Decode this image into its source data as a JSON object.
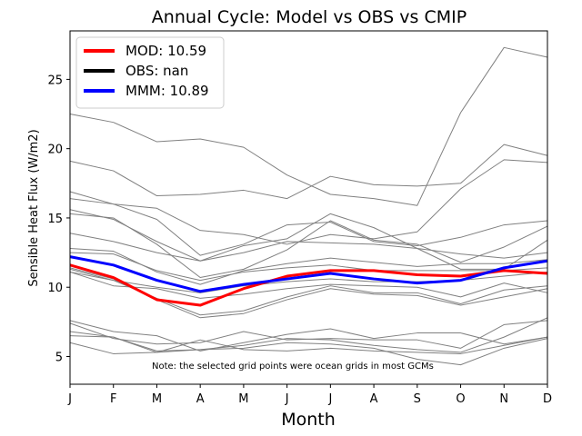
{
  "chart_data": {
    "type": "line",
    "title": "Annual Cycle: Model vs OBS vs CMIP",
    "xlabel": "Month",
    "ylabel": "Sensible Heat Flux (W/m2)",
    "categories": [
      "J",
      "F",
      "M",
      "A",
      "M",
      "J",
      "J",
      "A",
      "S",
      "O",
      "N",
      "D"
    ],
    "ylim": [
      3.0,
      28.5
    ],
    "yticks": [
      5,
      10,
      15,
      20,
      25
    ],
    "note": "Note: the selected grid points were ocean grids in most GCMs",
    "legend": {
      "position": "top-left",
      "entries": [
        {
          "label": "MOD: 10.59",
          "color": "#ff0000"
        },
        {
          "label": "OBS: nan",
          "color": "#000000"
        },
        {
          "label": "MMM: 10.89",
          "color": "#0000ff"
        }
      ]
    },
    "series": [
      {
        "name": "MOD",
        "color": "#ff0000",
        "width": 3,
        "values": [
          11.6,
          10.7,
          9.1,
          8.7,
          9.9,
          10.8,
          11.2,
          11.2,
          10.9,
          10.8,
          11.2,
          11.0
        ]
      },
      {
        "name": "MMM",
        "color": "#0000ff",
        "width": 3,
        "values": [
          12.2,
          11.6,
          10.5,
          9.7,
          10.2,
          10.6,
          11.0,
          10.6,
          10.3,
          10.5,
          11.4,
          11.9
        ]
      }
    ],
    "cmip_models": [
      {
        "color": "#808080",
        "values": [
          22.5,
          21.9,
          20.5,
          20.7,
          20.1,
          18.1,
          16.7,
          16.4,
          15.9,
          22.6,
          27.3,
          26.6
        ]
      },
      {
        "color": "#808080",
        "values": [
          19.1,
          18.4,
          16.6,
          16.7,
          17.0,
          16.4,
          18.0,
          17.4,
          17.3,
          17.5,
          20.3,
          19.5
        ]
      },
      {
        "color": "#808080",
        "values": [
          16.9,
          16.0,
          15.7,
          14.1,
          13.8,
          13.1,
          13.8,
          13.5,
          14.0,
          17.1,
          19.2,
          19.0
        ]
      },
      {
        "color": "#808080",
        "values": [
          16.4,
          16.0,
          14.9,
          12.3,
          13.1,
          14.5,
          14.7,
          13.3,
          13.0,
          13.6,
          14.5,
          14.8
        ]
      },
      {
        "color": "#808080",
        "values": [
          15.6,
          14.9,
          13.3,
          11.9,
          13.0,
          13.5,
          15.3,
          14.3,
          12.8,
          11.3,
          11.3,
          13.4
        ]
      },
      {
        "color": "#808080",
        "values": [
          15.3,
          15.0,
          13.1,
          10.7,
          11.3,
          12.7,
          14.8,
          13.4,
          13.1,
          11.8,
          12.9,
          14.4
        ]
      },
      {
        "color": "#808080",
        "values": [
          13.9,
          13.3,
          12.5,
          11.9,
          12.5,
          13.3,
          13.2,
          13.1,
          12.8,
          12.4,
          12.1,
          12.5
        ]
      },
      {
        "color": "#808080",
        "values": [
          12.8,
          12.6,
          11.1,
          10.2,
          11.2,
          11.7,
          12.1,
          11.8,
          11.5,
          11.7,
          11.7,
          12.0
        ]
      },
      {
        "color": "#808080",
        "values": [
          12.5,
          12.4,
          11.2,
          10.5,
          11.1,
          11.4,
          11.6,
          11.2,
          11.2,
          11.2,
          11.2,
          11.4
        ]
      },
      {
        "color": "#808080",
        "values": [
          11.3,
          10.5,
          10.0,
          9.6,
          10.1,
          10.4,
          10.6,
          10.4,
          10.4,
          10.5,
          10.8,
          11.1
        ]
      },
      {
        "color": "#808080",
        "values": [
          11.1,
          10.1,
          9.9,
          9.2,
          9.5,
          9.9,
          10.2,
          10.1,
          10.0,
          9.3,
          10.3,
          9.6
        ]
      },
      {
        "color": "#808080",
        "values": [
          11.1,
          10.5,
          9.2,
          8.0,
          8.3,
          9.3,
          10.1,
          9.6,
          9.6,
          8.8,
          9.8,
          10.1
        ]
      },
      {
        "color": "#808080",
        "values": [
          11.4,
          10.6,
          9.1,
          7.8,
          8.1,
          9.1,
          9.9,
          9.5,
          9.4,
          8.7,
          9.3,
          9.9
        ]
      },
      {
        "color": "#808080",
        "values": [
          7.6,
          6.8,
          6.5,
          5.4,
          6.0,
          6.6,
          7.0,
          6.3,
          6.7,
          6.7,
          5.9,
          6.4
        ]
      },
      {
        "color": "#808080",
        "values": [
          7.4,
          6.3,
          5.9,
          6.0,
          6.8,
          6.2,
          6.3,
          6.2,
          6.2,
          5.6,
          7.3,
          7.6
        ]
      },
      {
        "color": "#808080",
        "values": [
          6.5,
          6.4,
          5.3,
          5.5,
          5.8,
          6.3,
          6.2,
          5.8,
          5.5,
          5.3,
          6.4,
          7.8
        ]
      },
      {
        "color": "#808080",
        "values": [
          6.0,
          5.2,
          5.3,
          6.2,
          5.5,
          5.4,
          5.6,
          5.4,
          5.3,
          5.2,
          5.8,
          6.4
        ]
      },
      {
        "color": "#808080",
        "values": [
          6.8,
          6.4,
          5.4,
          5.5,
          5.6,
          6.0,
          5.9,
          5.6,
          4.8,
          4.4,
          5.6,
          6.3
        ]
      }
    ]
  }
}
